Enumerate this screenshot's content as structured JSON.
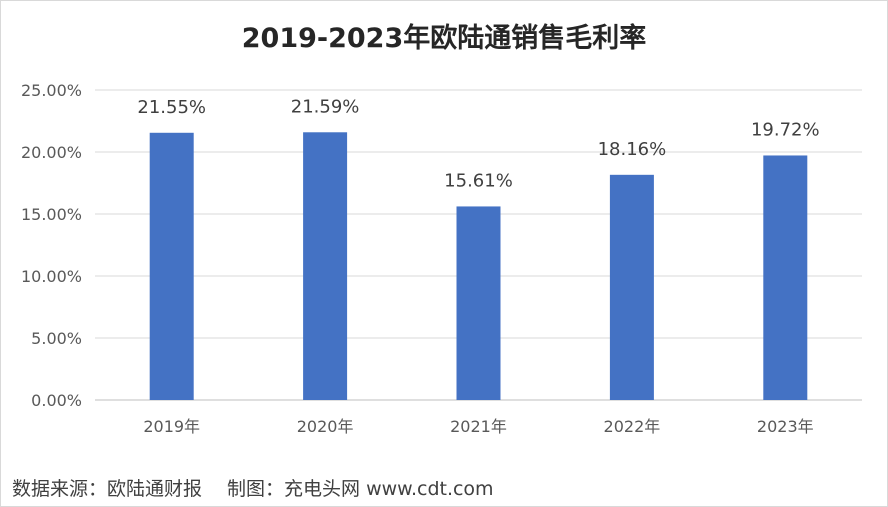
{
  "chart_data": {
    "type": "bar",
    "title": "2019-2023年欧陆通销售毛利率",
    "categories": [
      "2019年",
      "2020年",
      "2021年",
      "2022年",
      "2023年"
    ],
    "values": [
      21.55,
      21.59,
      15.61,
      18.16,
      19.72
    ],
    "data_labels": [
      "21.55%",
      "21.59%",
      "15.61%",
      "18.16%",
      "19.72%"
    ],
    "y_ticks": [
      "0.00%",
      "5.00%",
      "10.00%",
      "15.00%",
      "20.00%",
      "25.00%"
    ],
    "ylim": [
      0,
      25
    ],
    "grid": true,
    "bar_color": "#4472c4"
  },
  "footer": {
    "source": "数据来源：欧陆通财报　 制图：充电头网 www.cdt.com"
  }
}
